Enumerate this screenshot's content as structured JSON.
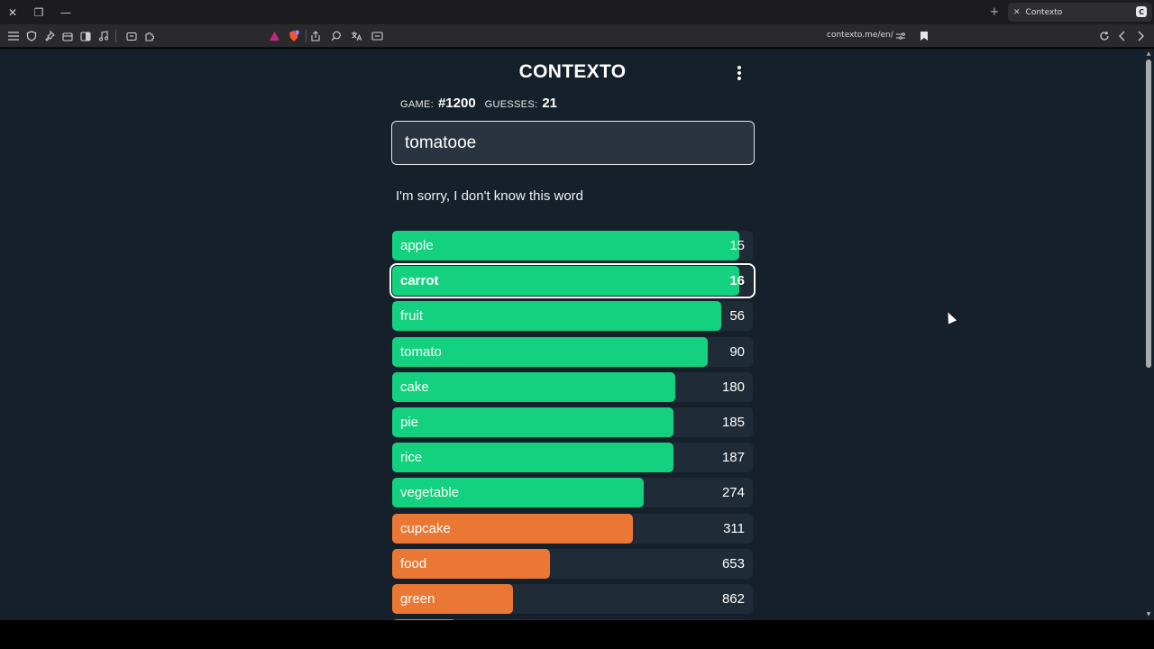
{
  "browser": {
    "tab_title": "Contexto",
    "tab_favicon_letter": "C",
    "url": "contexto.me/en/",
    "title_buttons": {
      "close": "✕",
      "restore": "❐",
      "minimize": "—"
    },
    "newtab": "+"
  },
  "app": {
    "title": "CONTEXTO",
    "game_label": "GAME:",
    "game_value": "#1200",
    "guesses_label": "GUESSES:",
    "guesses_value": "21",
    "input_value": "tomatooe",
    "message": "I'm sorry, I don't know this word",
    "colors": {
      "green": "#13d17e",
      "orange": "#ea7834",
      "track": "#1f2b37",
      "background": "#15202b"
    }
  },
  "guesses": [
    {
      "word": "apple",
      "rank": "15",
      "color": "green",
      "fill": 0.98,
      "current": false
    },
    {
      "word": "carrot",
      "rank": "16",
      "color": "green",
      "fill": 0.98,
      "current": true
    },
    {
      "word": "fruit",
      "rank": "56",
      "color": "green",
      "fill": 0.93,
      "current": false
    },
    {
      "word": "tomato",
      "rank": "90",
      "color": "green",
      "fill": 0.89,
      "current": false
    },
    {
      "word": "cake",
      "rank": "180",
      "color": "green",
      "fill": 0.8,
      "current": false
    },
    {
      "word": "pie",
      "rank": "185",
      "color": "green",
      "fill": 0.795,
      "current": false
    },
    {
      "word": "rice",
      "rank": "187",
      "color": "green",
      "fill": 0.793,
      "current": false
    },
    {
      "word": "vegetable",
      "rank": "274",
      "color": "green",
      "fill": 0.71,
      "current": false
    },
    {
      "word": "cupcake",
      "rank": "311",
      "color": "orange",
      "fill": 0.68,
      "current": false
    },
    {
      "word": "food",
      "rank": "653",
      "color": "orange",
      "fill": 0.445,
      "current": false
    },
    {
      "word": "green",
      "rank": "862",
      "color": "orange",
      "fill": 0.34,
      "current": false
    },
    {
      "word": "",
      "rank": "",
      "color": "orange",
      "fill": 0.18,
      "current": false
    }
  ],
  "toolbar_icons": [
    "menu-icon",
    "shield-icon",
    "pin-icon",
    "tabs-icon",
    "sidebar-icon",
    "music-icon",
    "wallet-icon",
    "extensions-icon",
    "brave-rewards-icon",
    "brave-shields-icon",
    "share-icon",
    "zoom-icon",
    "translate-icon",
    "cast-icon",
    "permissions-icon",
    "bookmark-icon",
    "reload-icon",
    "back-icon",
    "forward-icon"
  ]
}
